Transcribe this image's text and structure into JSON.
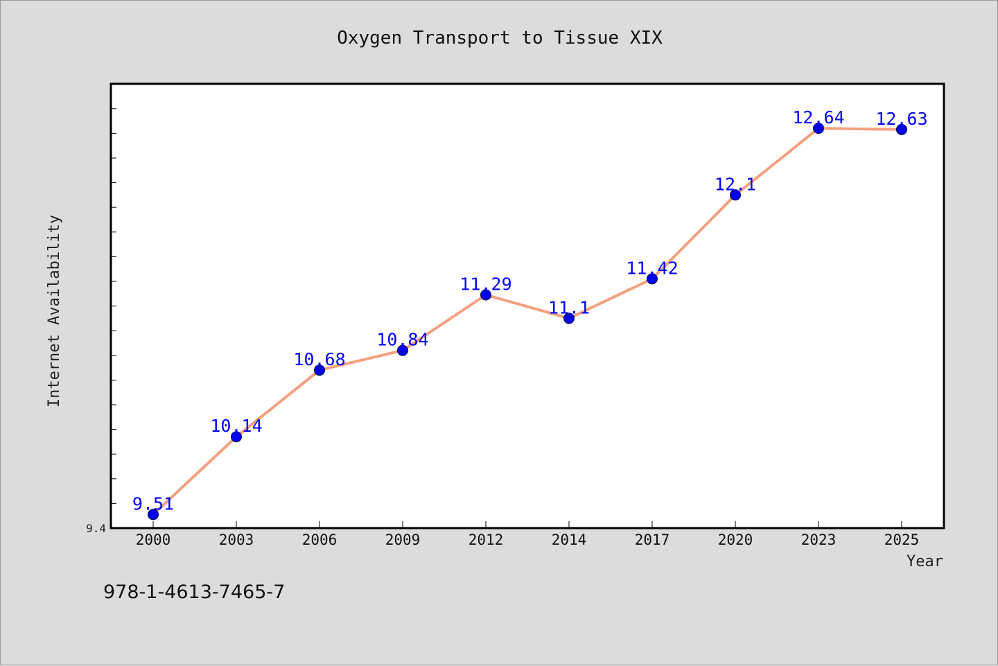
{
  "chart_data": {
    "type": "line",
    "title": "Oxygen Transport to Tissue XIX",
    "xlabel": "Year",
    "ylabel": "Internet Availability",
    "categories": [
      "2000",
      "2003",
      "2006",
      "2009",
      "2012",
      "2014",
      "2017",
      "2020",
      "2023",
      "2025"
    ],
    "series": [
      {
        "values": [
          9.51,
          10.14,
          10.68,
          10.84,
          11.29,
          11.1,
          11.42,
          12.1,
          12.64,
          12.63
        ],
        "line_color": "#f4a07f",
        "marker_color": "#0000ee",
        "label_color": "#0000ff"
      }
    ],
    "data_labels": [
      "9.51",
      "10.14",
      "10.68",
      "10.84",
      "11.29",
      "11.1",
      "11.42",
      "12.1",
      "12.64",
      "12.63"
    ],
    "y_tick_label": "9.4",
    "ylim": [
      9.4,
      13.0
    ],
    "grid": false,
    "legend": "none"
  },
  "footnote": "978-1-4613-7465-7"
}
